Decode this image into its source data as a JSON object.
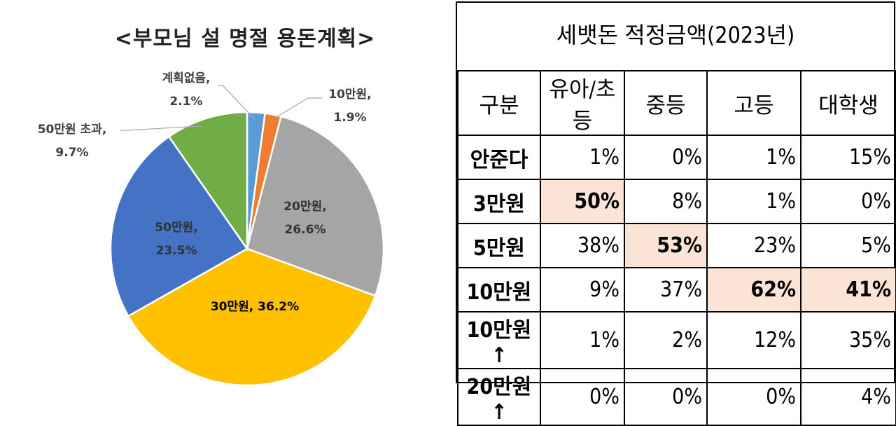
{
  "chart_data": [
    {
      "type": "pie",
      "title": "<부모님 설 명절 용돈계획>",
      "slices": [
        {
          "label": "계획없음,",
          "value": 2.1,
          "display": "2.1%",
          "color": "#5b9bd5"
        },
        {
          "label": "10만원,",
          "value": 1.9,
          "display": "1.9%",
          "color": "#ed7d31"
        },
        {
          "label": "20만원,",
          "value": 26.6,
          "display": "26.6%",
          "color": "#a5a5a5"
        },
        {
          "label": "30만원,",
          "value": 36.2,
          "display": "36.2%",
          "color": "#ffc000"
        },
        {
          "label": "50만원,",
          "value": 23.5,
          "display": "23.5%",
          "color": "#4472c4"
        },
        {
          "label": "50만원 초과,",
          "value": 9.7,
          "display": "9.7%",
          "color": "#70ad47"
        }
      ]
    },
    {
      "type": "table",
      "title": "세뱃돈 적정금액(2023년)",
      "columns": [
        "구분",
        "유아/초등",
        "중등",
        "고등",
        "대학생"
      ],
      "rows": [
        {
          "label": "안준다",
          "values": [
            "1%",
            "0%",
            "1%",
            "15%"
          ],
          "highlight": []
        },
        {
          "label": "3만원",
          "values": [
            "50%",
            "8%",
            "1%",
            "0%"
          ],
          "highlight": [
            0
          ]
        },
        {
          "label": "5만원",
          "values": [
            "38%",
            "53%",
            "23%",
            "5%"
          ],
          "highlight": [
            1
          ]
        },
        {
          "label": "10만원",
          "values": [
            "9%",
            "37%",
            "62%",
            "41%"
          ],
          "highlight": [
            2,
            3
          ]
        },
        {
          "label": "10만원↑",
          "values": [
            "1%",
            "2%",
            "12%",
            "35%"
          ],
          "highlight": []
        },
        {
          "label": "20만원↑",
          "values": [
            "0%",
            "0%",
            "0%",
            "4%"
          ],
          "highlight": []
        }
      ],
      "highlight_color": "#fbe4d5"
    }
  ]
}
